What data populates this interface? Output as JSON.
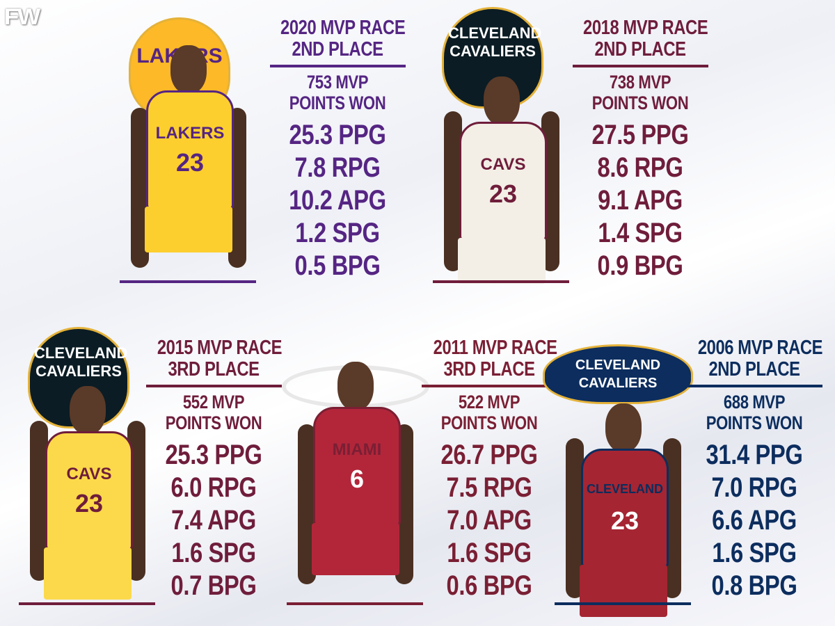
{
  "brand": {
    "logo_text": "FW"
  },
  "colors": {
    "lakers": "#552583",
    "cavs_wine": "#6f1d3b",
    "heat": "#7a1f34",
    "cavs_navy": "#0c2d5e"
  },
  "panels": [
    {
      "id": "2020",
      "team": "Lakers",
      "team_logo_text": "LAKERS",
      "jersey_text": "LAKERS",
      "jersey_number": "23",
      "jersey_color": "#fdcf2e",
      "accent": "#552583",
      "title_line1": "2020 MVP RACE",
      "title_line2": "2ND PLACE",
      "points_line1": "753 MVP",
      "points_line2": "POINTS WON",
      "stats": [
        "25.3 PPG",
        "7.8 RPG",
        "10.2 APG",
        "1.2 SPG",
        "0.5 BPG"
      ]
    },
    {
      "id": "2018",
      "team": "Cavaliers",
      "team_logo_text": "CLEVELAND CAVALIERS",
      "jersey_text": "CAVS",
      "jersey_number": "23",
      "jersey_color": "#f3efe6",
      "accent": "#6f1d3b",
      "title_line1": "2018 MVP RACE",
      "title_line2": "2ND PLACE",
      "points_line1": "738 MVP",
      "points_line2": "POINTS WON",
      "stats": [
        "27.5 PPG",
        "8.6 RPG",
        "9.1 APG",
        "1.4 SPG",
        "0.9 BPG"
      ]
    },
    {
      "id": "2015",
      "team": "Cavaliers",
      "team_logo_text": "CLEVELAND CAVALIERS",
      "jersey_text": "CAVS",
      "jersey_number": "23",
      "jersey_color": "#fbd94a",
      "accent": "#6f1d3b",
      "title_line1": "2015 MVP RACE",
      "title_line2": "3RD PLACE",
      "points_line1": "552 MVP",
      "points_line2": "POINTS WON",
      "stats": [
        "25.3 PPG",
        "6.0 RPG",
        "7.4 APG",
        "1.6 SPG",
        "0.7 BPG"
      ]
    },
    {
      "id": "2011",
      "team": "Heat",
      "team_logo_text": "",
      "jersey_text": "MIAMI",
      "jersey_number": "6",
      "jersey_color": "#b3263a",
      "accent": "#7a1f34",
      "title_line1": "2011 MVP RACE",
      "title_line2": "3RD PLACE",
      "points_line1": "522 MVP",
      "points_line2": "POINTS WON",
      "stats": [
        "26.7 PPG",
        "7.5 RPG",
        "7.0 APG",
        "1.6 SPG",
        "0.6 BPG"
      ]
    },
    {
      "id": "2006",
      "team": "Cavaliers",
      "team_logo_text": "CLEVELAND CAVALIERS",
      "jersey_text": "CLEVELAND",
      "jersey_number": "23",
      "jersey_color": "#a52532",
      "accent": "#0c2d5e",
      "title_line1": "2006 MVP RACE",
      "title_line2": "2ND PLACE",
      "points_line1": "688 MVP",
      "points_line2": "POINTS WON",
      "stats": [
        "31.4 PPG",
        "7.0 RPG",
        "6.6 APG",
        "1.6 SPG",
        "0.8 BPG"
      ]
    }
  ]
}
